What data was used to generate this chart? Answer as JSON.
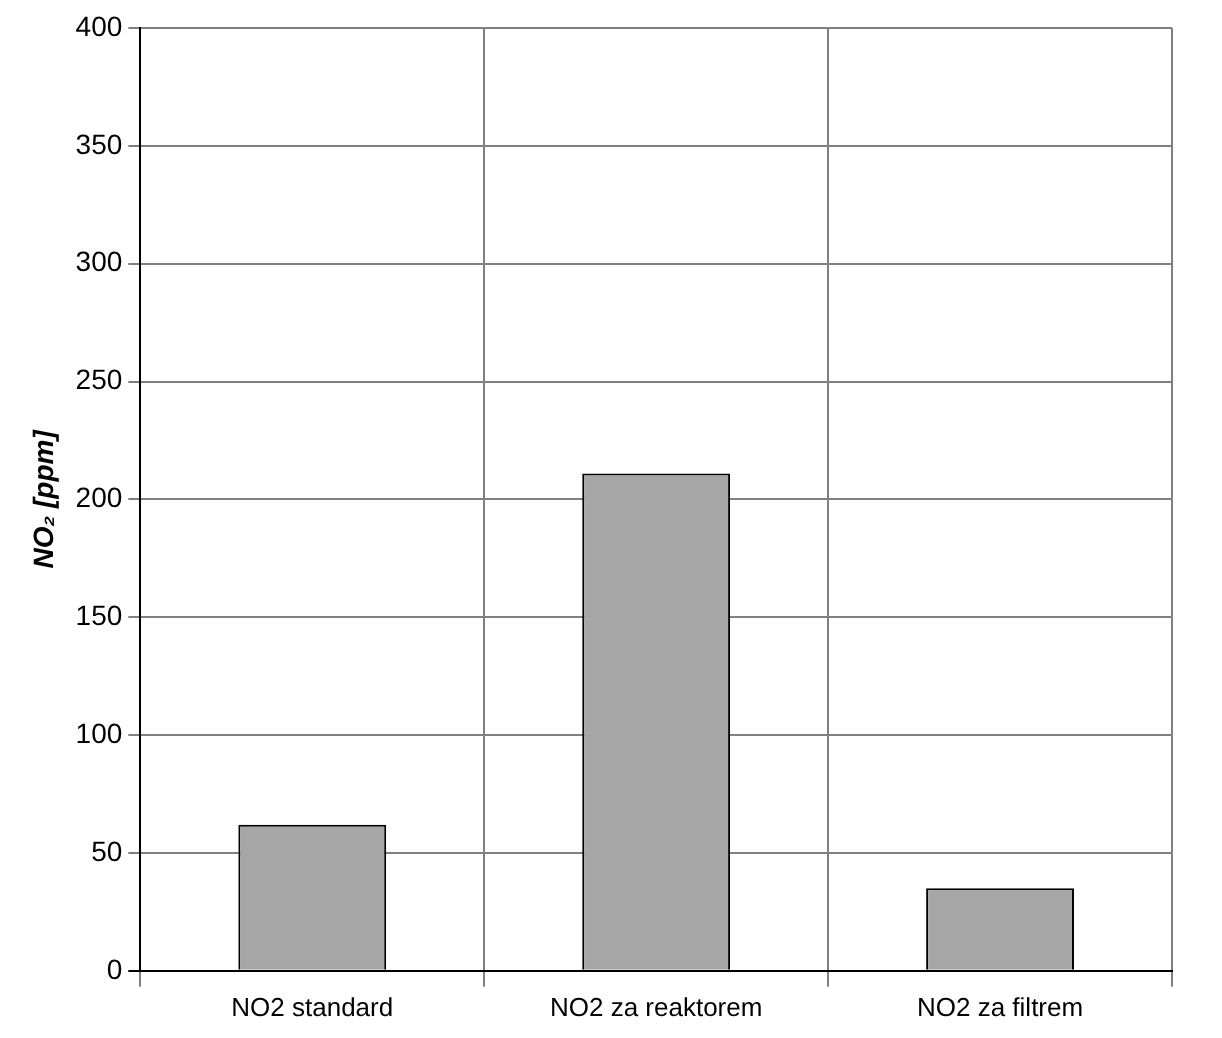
{
  "chart_data": {
    "type": "bar",
    "ylabel": "NO₂ [ppm]",
    "categories": [
      "NO2 standard",
      "NO2 za reaktorem",
      "NO2 za filtrem"
    ],
    "values": [
      62,
      211,
      35
    ],
    "color": "#a6a6a6",
    "ylim": [
      0,
      400
    ],
    "yticks": [
      0,
      50,
      100,
      150,
      200,
      250,
      300,
      350,
      400
    ],
    "grid": true,
    "legend": false
  }
}
